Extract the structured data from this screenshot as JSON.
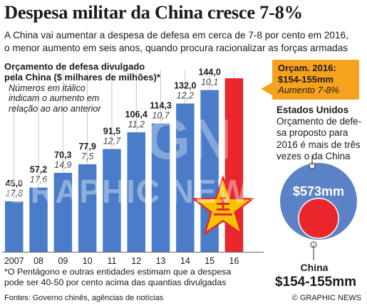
{
  "title": "Despesa militar da China cresce 7-8%",
  "subtitle_line1": "A China vai aumentar a despesa de defesa em cerca de 7-8 por cento em 2016,",
  "subtitle_line2": "o menor aumento em seis anos, quando procura racionalizar as forças armadas",
  "chart_title_line1": "Orçamento de defesa divulgado",
  "chart_title_line2": "pela China ($ milhares de milhões)*",
  "chart_note_line1": "Números em itálico",
  "chart_note_line2": "indicam o aumento em",
  "chart_note_line3": "relação ao ano anterior",
  "callout_line1": "Orçam. 2016:",
  "callout_line2": "$154-155mm",
  "callout_line3": "Aumento 7-8%",
  "us_heading": "Estados Unidos",
  "us_line1": "Orçamento de defe-",
  "us_line2": "sa proposto para",
  "us_line3": "2016 é mais de três",
  "us_line4": "vezes o da China",
  "us_circle_label": "$573mm",
  "china_circle_name": "China",
  "china_circle_value": "$154-155mm",
  "footnote_line1": "*O Pentágono e outras entidades estimam que a despesa",
  "footnote_line2": "pode ser 40-50 por cento acima das quantias divulgadas",
  "sources": "Fontes: Governo chinês, agências de notícias",
  "copyright": "© GRAPHIC NEWS",
  "watermark": "GRAPHIC NEWS",
  "watermark_mark": "GN",
  "colors": {
    "bar": "#4a7cc9",
    "bar_2016": "#e8262c",
    "callout": "#f7a21e",
    "us_circle": "#5b82c6",
    "china_circle": "#e8262c",
    "star": "#f5c400",
    "gridline": "#b9b9b9"
  },
  "chart_data": {
    "type": "bar",
    "title": "Orçamento de defesa divulgado pela China ($ milhares de milhões)*",
    "categories": [
      "2007",
      "08",
      "09",
      "10",
      "11",
      "12",
      "13",
      "14",
      "15",
      "16"
    ],
    "values": [
      45.0,
      57.2,
      70.3,
      77.9,
      91.5,
      106.4,
      114.3,
      132.0,
      144.0,
      154.5
    ],
    "value_labels": [
      "45,0",
      "57,2",
      "70,3",
      "77,9",
      "91,5",
      "106,4",
      "114,3",
      "132,0",
      "144,0",
      ""
    ],
    "growth_labels": [
      "17,8",
      "17,6",
      "14,9",
      "7,5",
      "12,7",
      "11,2",
      "10,7",
      "12,2",
      "10,1",
      ""
    ],
    "highlight_index": 9,
    "ylim": [
      0,
      160
    ],
    "grid": true
  },
  "comparison": {
    "type": "proportional-circles",
    "us_value": 573,
    "china_value": 154.5
  }
}
